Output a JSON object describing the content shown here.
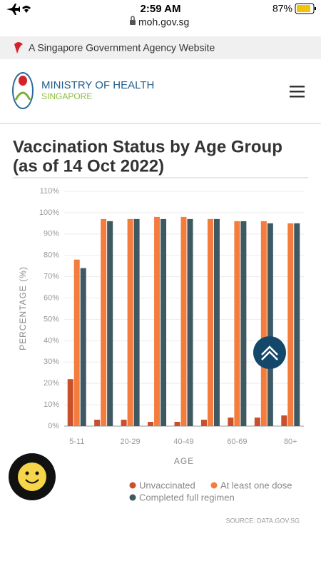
{
  "status_bar": {
    "time": "2:59 AM",
    "url": "moh.gov.sg",
    "battery": "87%"
  },
  "banner": "A Singapore Government Agency Website",
  "header": {
    "ministry": "MINISTRY OF HEALTH",
    "country": "SINGAPORE"
  },
  "chart_data": {
    "type": "bar",
    "title": [
      "Vaccination Status by Age Group",
      "(as of 14 Oct 2022)"
    ],
    "x_label": "AGE",
    "y_label": "PERCENTAGE (%)",
    "categories": [
      "5-11",
      null,
      "20-29",
      null,
      "40-49",
      null,
      "60-69",
      null,
      "80+"
    ],
    "series": [
      {
        "name": "Unvaccinated",
        "color": "#c9502b",
        "values": [
          22,
          3,
          3,
          2,
          2,
          3,
          4,
          4,
          5
        ]
      },
      {
        "name": "At least one dose",
        "color": "#f47c3c",
        "values": [
          78,
          97,
          97,
          98,
          98,
          97,
          96,
          96,
          95
        ]
      },
      {
        "name": "Completed full regimen",
        "color": "#3e5962",
        "values": [
          74,
          96,
          97,
          97,
          97,
          97,
          96,
          95,
          95
        ]
      }
    ],
    "ylim": [
      0,
      110
    ],
    "yticks": [
      {
        "value": 0,
        "label": "0%"
      },
      {
        "value": 10,
        "label": "10%"
      },
      {
        "value": 20,
        "label": "20%"
      },
      {
        "value": 30,
        "label": "30%"
      },
      {
        "value": 40,
        "label": "40%"
      },
      {
        "value": 50,
        "label": "50%"
      },
      {
        "value": 60,
        "label": "60%"
      },
      {
        "value": 70,
        "label": "70%"
      },
      {
        "value": 80,
        "label": "80%"
      },
      {
        "value": 90,
        "label": "90%"
      },
      {
        "value": 100,
        "label": "100%"
      },
      {
        "value": 110,
        "label": "110%"
      }
    ],
    "grid": true,
    "source": "SOURCE: DATA.GOV.SG"
  }
}
